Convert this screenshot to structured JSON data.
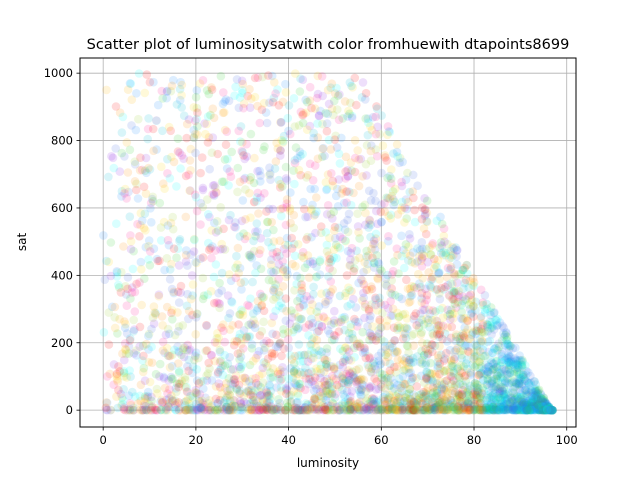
{
  "chart_data": {
    "type": "scatter",
    "title": "Scatter plot of luminositysatwith color fromhuewith dtapoints8699",
    "xlabel": "luminosity",
    "ylabel": "sat",
    "xlim": [
      -5,
      102
    ],
    "ylim": [
      -50,
      1045
    ],
    "xticks": [
      "0",
      "20",
      "40",
      "60",
      "80",
      "100"
    ],
    "yticks": [
      "0",
      "200",
      "400",
      "600",
      "800",
      "1000"
    ],
    "grid": true,
    "legend": "none",
    "marker_alpha": 0.15,
    "palette": [
      "#ff0000",
      "#ff8c00",
      "#ffb300",
      "#ffd700",
      "#9acd32",
      "#32cd32",
      "#00bcd4",
      "#00ffff",
      "#1e90ff",
      "#4169e1",
      "#8a2be2",
      "#ff1493"
    ],
    "point_count": 8699
  }
}
